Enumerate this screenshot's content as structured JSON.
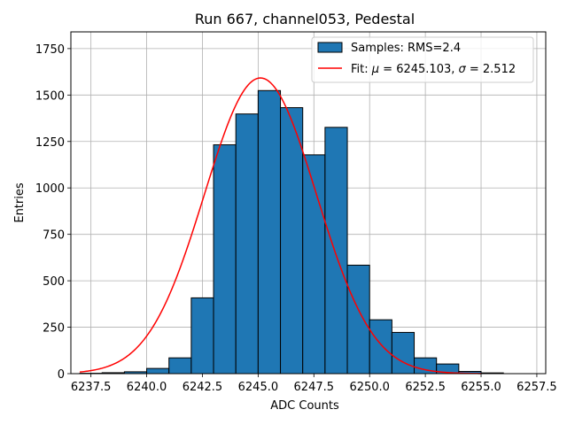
{
  "chart_data": {
    "type": "bar",
    "title": "Run 667, channel053, Pedestal",
    "xlabel": "ADC Counts",
    "ylabel": "Entries",
    "xlim": [
      6236.6,
      6257.9
    ],
    "ylim": [
      0,
      1840
    ],
    "grid": true,
    "legend_position": "top-right",
    "bin_edges": [
      6237,
      6238,
      6239,
      6240,
      6241,
      6242,
      6243,
      6244,
      6245,
      6246,
      6247,
      6248,
      6249,
      6250,
      6251,
      6252,
      6253,
      6254,
      6255,
      6256,
      6257
    ],
    "values": [
      2,
      5,
      10,
      28,
      85,
      408,
      1232,
      1398,
      1524,
      1432,
      1178,
      1326,
      584,
      290,
      222,
      85,
      52,
      12,
      4,
      0
    ],
    "x_ticks": [
      6237.5,
      6240.0,
      6242.5,
      6245.0,
      6247.5,
      6250.0,
      6252.5,
      6255.0,
      6257.5
    ],
    "x_tick_labels": [
      "6237.5",
      "6240.0",
      "6242.5",
      "6245.0",
      "6247.5",
      "6250.0",
      "6252.5",
      "6255.0",
      "6257.5"
    ],
    "y_ticks": [
      0,
      250,
      500,
      750,
      1000,
      1250,
      1500,
      1750
    ],
    "y_tick_labels": [
      "0",
      "250",
      "500",
      "750",
      "1000",
      "1250",
      "1500",
      "1750"
    ],
    "fit": {
      "mu": 6245.103,
      "sigma": 2.512,
      "amplitude": 1592,
      "x_range": [
        6237,
        6255
      ]
    },
    "legend": {
      "hist_label": "Samples: RMS=2.4",
      "fit_label_prefix": "Fit: ",
      "mu_symbol": "μ",
      "mu_text": " = 6245.103, ",
      "sigma_symbol": "σ",
      "sigma_text": " = 2.512"
    },
    "colors": {
      "bar_fill": "#1f77b4",
      "bar_edge": "#000000",
      "fit_line": "#ff0000",
      "grid": "#b0b0b0"
    }
  }
}
